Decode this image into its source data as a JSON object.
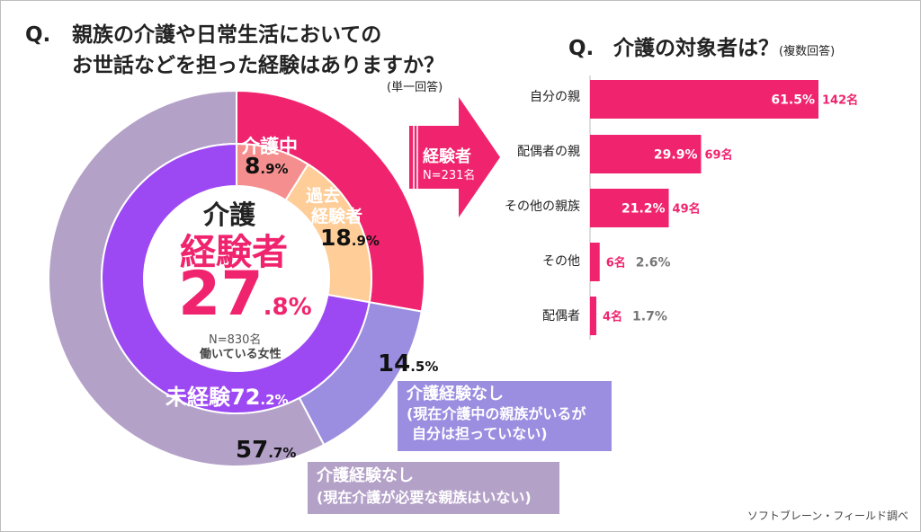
{
  "left": {
    "question_mark": "Q.",
    "title_line1": "親族の介護や日常生活においての",
    "title_line2": "お世話などを担った経験はありますか？",
    "note": "(単一回答)",
    "center": {
      "line1": "介護",
      "line2": "経験者",
      "big_num": "27",
      "small_num": ".8%",
      "n": "N=830名",
      "who": "働いている女性"
    },
    "labels": {
      "current_label": "介護中",
      "current_big": "8",
      "current_small": ".9%",
      "past_label1": "過去",
      "past_label2": "経験者",
      "past_big": "18",
      "past_small": ".9%",
      "none_label": "未経験",
      "none_big": "72",
      "none_small": ".2%",
      "r1_big": "14",
      "r1_small": ".5%",
      "r2_big": "57",
      "r2_small": ".7%"
    },
    "box1": {
      "line1": "介護経験なし",
      "line2": "(現在介護中の親族がいるが",
      "line3": "自分は担っていない)"
    },
    "box2": {
      "line1": "介護経験なし",
      "line2": "(現在介護が必要な親族はいない)"
    }
  },
  "arrow": {
    "label": "経験者",
    "n": "N=231名"
  },
  "right": {
    "question_mark": "Q.",
    "title": "介護の対象者は？",
    "note": "(複数回答)"
  },
  "footer": "ソフトブレーン・フィールド調べ",
  "colors": {
    "pink": "#f0246e",
    "salmon": "#f58f8f",
    "peach": "#fecd98",
    "purple": "#9d49f3",
    "lavender": "#9b8ee0",
    "mauve": "#b4a1c8"
  },
  "chart_data": [
    {
      "type": "pie",
      "ring": "inner",
      "categories": [
        "介護中",
        "過去経験者",
        "未経験"
      ],
      "values": [
        8.9,
        18.9,
        72.2
      ],
      "unit": "%"
    },
    {
      "type": "pie",
      "ring": "outer",
      "categories": [
        "介護経験者",
        "介護経験なし(現在介護中の親族がいるが自分は担っていない)",
        "介護経験なし(現在介護が必要な親族はいない)"
      ],
      "values": [
        27.8,
        14.5,
        57.7
      ],
      "unit": "%"
    },
    {
      "type": "bar",
      "orientation": "horizontal",
      "categories": [
        "自分の親",
        "配偶者の親",
        "その他の親族",
        "その他",
        "配偶者"
      ],
      "values": [
        61.5,
        29.9,
        21.2,
        2.6,
        1.7
      ],
      "value_labels": [
        "61.5%",
        "29.9%",
        "21.2%",
        "2.6%",
        "1.7%"
      ],
      "counts": [
        "142名",
        "69名",
        "49名",
        "6名",
        "4名"
      ],
      "unit": "%"
    }
  ]
}
